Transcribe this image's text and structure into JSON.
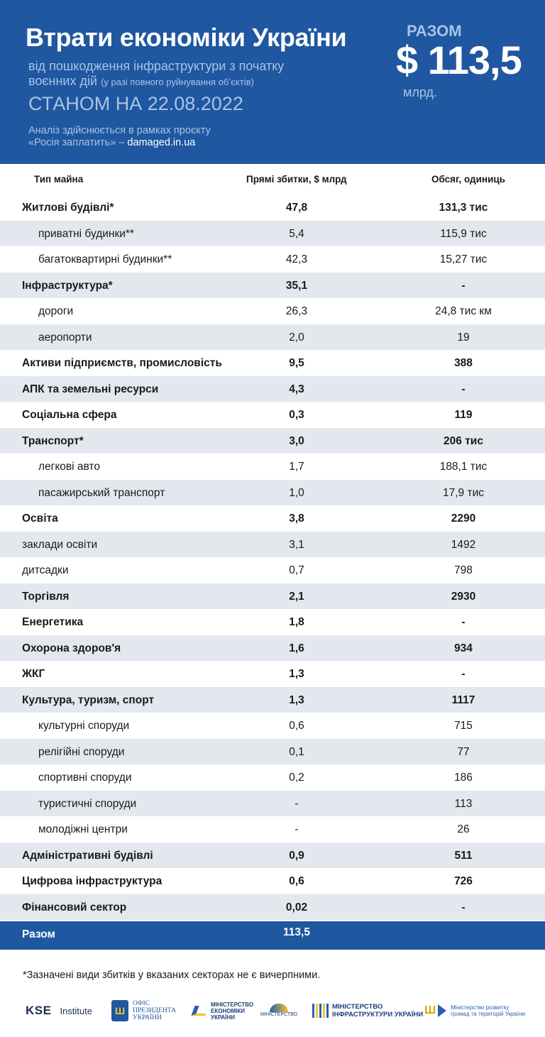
{
  "header": {
    "title": "Втрати економіки України",
    "subtitle_line1": "від пошкодження інфраструктури з початку",
    "subtitle_line2": "воєнних дій",
    "subtitle_note": "(у разі повного руйнування об’єктів)",
    "date": "СТАНОМ НА 22.08.2022",
    "note_line1": "Аналіз здійснюється в рамках проєкту",
    "note_line2": "«Росія заплатить» –",
    "note_link": "damaged.in.ua",
    "total_label": "РАЗОМ",
    "total_value": "$ 113,5",
    "total_unit": "млрд."
  },
  "columns": {
    "type": "Тип майна",
    "damage": "Прямі збитки, $ млрд",
    "volume": "Обсяг, одиниць"
  },
  "rows": [
    {
      "type": "Житлові будівлі*",
      "damage": "47,8",
      "volume": "131,3 тис",
      "bold": true,
      "sub": false
    },
    {
      "type": "приватні будинки**",
      "damage": "5,4",
      "volume": "115,9 тис",
      "bold": false,
      "sub": true
    },
    {
      "type": "багатоквартирні будинки**",
      "damage": "42,3",
      "volume": "15,27 тис",
      "bold": false,
      "sub": true
    },
    {
      "type": "Інфраструктура*",
      "damage": "35,1",
      "volume": "-",
      "bold": true,
      "sub": false
    },
    {
      "type": "дороги",
      "damage": "26,3",
      "volume": "24,8 тис км",
      "bold": false,
      "sub": true
    },
    {
      "type": "аеропорти",
      "damage": "2,0",
      "volume": "19",
      "bold": false,
      "sub": true
    },
    {
      "type": "Активи підприємств, промисловість",
      "damage": "9,5",
      "volume": "388",
      "bold": true,
      "sub": false
    },
    {
      "type": "АПК та земельні ресурси",
      "damage": "4,3",
      "volume": "-",
      "bold": true,
      "sub": false
    },
    {
      "type": "Соціальна сфера",
      "damage": "0,3",
      "volume": "119",
      "bold": true,
      "sub": false
    },
    {
      "type": "Транспорт*",
      "damage": "3,0",
      "volume": "206 тис",
      "bold": true,
      "sub": false
    },
    {
      "type": "легкові авто",
      "damage": "1,7",
      "volume": "188,1 тис",
      "bold": false,
      "sub": true
    },
    {
      "type": "пасажирський транспорт",
      "damage": "1,0",
      "volume": "17,9 тис",
      "bold": false,
      "sub": true
    },
    {
      "type": "Освіта",
      "damage": "3,8",
      "volume": "2290",
      "bold": true,
      "sub": false
    },
    {
      "type": "заклади освіти",
      "damage": "3,1",
      "volume": "1492",
      "bold": false,
      "sub": false
    },
    {
      "type": "дитсадки",
      "damage": "0,7",
      "volume": "798",
      "bold": false,
      "sub": false
    },
    {
      "type": "Торгівля",
      "damage": "2,1",
      "volume": "2930",
      "bold": true,
      "sub": false
    },
    {
      "type": "Енергетика",
      "damage": "1,8",
      "volume": "-",
      "bold": true,
      "sub": false
    },
    {
      "type": "Охорона здоров'я",
      "damage": "1,6",
      "volume": "934",
      "bold": true,
      "sub": false
    },
    {
      "type": "ЖКГ",
      "damage": "1,3",
      "volume": "-",
      "bold": true,
      "sub": false
    },
    {
      "type": "Культура, туризм, спорт",
      "damage": "1,3",
      "volume": "1117",
      "bold": true,
      "sub": false
    },
    {
      "type": "культурні споруди",
      "damage": "0,6",
      "volume": "715",
      "bold": false,
      "sub": true
    },
    {
      "type": "релігійні споруди",
      "damage": "0,1",
      "volume": "77",
      "bold": false,
      "sub": true
    },
    {
      "type": "спортивні споруди",
      "damage": "0,2",
      "volume": "186",
      "bold": false,
      "sub": true
    },
    {
      "type": "туристичні споруди",
      "damage": "-",
      "volume": "113",
      "bold": false,
      "sub": true
    },
    {
      "type": "молодіжні центри",
      "damage": "-",
      "volume": "26",
      "bold": false,
      "sub": true
    },
    {
      "type": "Адміністративні будівлі",
      "damage": "0,9",
      "volume": "511",
      "bold": true,
      "sub": false
    },
    {
      "type": "Цифрова інфраструктура",
      "damage": "0,6",
      "volume": "726",
      "bold": true,
      "sub": false
    },
    {
      "type": "Фінансовий сектор",
      "damage": "0,02",
      "volume": "-",
      "bold": true,
      "sub": false
    }
  ],
  "total": {
    "label": "Разом",
    "value": "113,5"
  },
  "footnote": "*Зазначені види збитків у вказаних секторах не є вичерпними.",
  "logos": {
    "kse_mark": "KSE",
    "kse_text": "Institute",
    "op_line1": "ОФІС",
    "op_line2": "ПРЕЗИДЕНТА",
    "op_line3": "УКРАЇНИ",
    "me_line1": "МІНІСТЕРСТВО",
    "me_line2": "ЕКОНОМІКИ",
    "me_line3": "УКРАЇНИ",
    "mr_line1": "МІНІСТЕРСТВО",
    "mi_line1": "МІНІСТЕРСТВО",
    "mi_line2": "ІНФРАСТРУКТУРИ УКРАЇНИ",
    "md_line1": "Міністерство розвитку",
    "md_line2": "громад та територій України"
  },
  "colors": {
    "header_blue": "#1f57a0",
    "header_text_light": "#a9c3e6",
    "row_shade": "#e3e7ee"
  }
}
